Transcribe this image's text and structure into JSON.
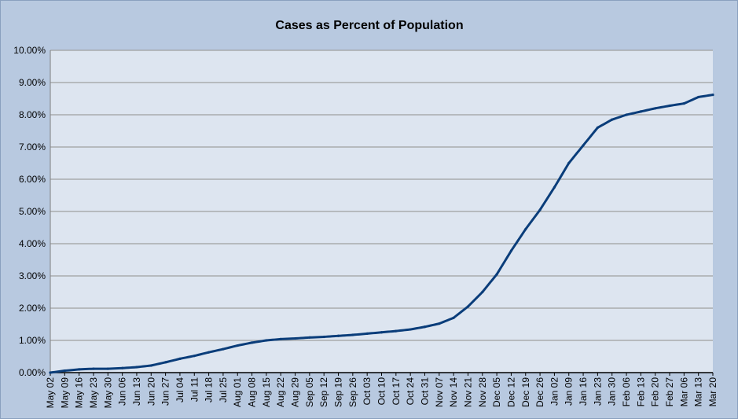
{
  "chart_data": {
    "type": "line",
    "title": "Cases as Percent of Population",
    "xlabel": "",
    "ylabel": "",
    "ylim": [
      0,
      10
    ],
    "y_tick_labels": [
      "0.00%",
      "1.00%",
      "2.00%",
      "3.00%",
      "4.00%",
      "5.00%",
      "6.00%",
      "7.00%",
      "8.00%",
      "9.00%",
      "10.00%"
    ],
    "x_tick_labels": [
      "May 02",
      "May 09",
      "May 16",
      "May 23",
      "May 30",
      "Jun 06",
      "Jun 13",
      "Jun 20",
      "Jun 27",
      "Jul 04",
      "Jul 11",
      "Jul 18",
      "Jul 25",
      "Aug 01",
      "Aug 08",
      "Aug 15",
      "Aug 22",
      "Aug 29",
      "Sep 05",
      "Sep 12",
      "Sep 19",
      "Sep 26",
      "Oct 03",
      "Oct 10",
      "Oct 17",
      "Oct 24",
      "Oct 31",
      "Nov 07",
      "Nov 14",
      "Nov 21",
      "Nov 28",
      "Dec 05",
      "Dec 12",
      "Dec 19",
      "Dec 26",
      "Jan 02",
      "Jan 09",
      "Jan 16",
      "Jan 23",
      "Jan 30",
      "Feb 06",
      "Feb 13",
      "Feb 20",
      "Feb 27",
      "Mar 06",
      "Mar 13",
      "Mar 20"
    ],
    "grid": true,
    "legend": "none",
    "colors": {
      "line": "#0a3d7a",
      "plot_background": "#dde5f0",
      "chart_background": "#b8c9e0",
      "gridline": "#a0a0a0"
    },
    "series": [
      {
        "x": [
          "May 02",
          "May 09",
          "May 16",
          "May 23",
          "May 30",
          "Jun 06",
          "Jun 13",
          "Jun 20",
          "Jun 27",
          "Jul 04",
          "Jul 11",
          "Jul 18",
          "Jul 25",
          "Aug 01",
          "Aug 08",
          "Aug 15",
          "Aug 22",
          "Aug 29",
          "Sep 05",
          "Sep 12",
          "Sep 19",
          "Sep 26",
          "Oct 03",
          "Oct 10",
          "Oct 17",
          "Oct 24",
          "Oct 31",
          "Nov 07",
          "Nov 14",
          "Nov 21",
          "Nov 28",
          "Dec 05",
          "Dec 12",
          "Dec 19",
          "Dec 26",
          "Jan 02",
          "Jan 09",
          "Jan 16",
          "Jan 23",
          "Jan 30",
          "Feb 06",
          "Feb 13",
          "Feb 20",
          "Feb 27",
          "Mar 06",
          "Mar 13",
          "Mar 20"
        ],
        "values": [
          0.0,
          0.06,
          0.1,
          0.12,
          0.12,
          0.14,
          0.17,
          0.22,
          0.32,
          0.43,
          0.52,
          0.63,
          0.73,
          0.84,
          0.93,
          1.0,
          1.04,
          1.06,
          1.09,
          1.11,
          1.14,
          1.17,
          1.21,
          1.25,
          1.29,
          1.34,
          1.42,
          1.52,
          1.7,
          2.05,
          2.5,
          3.05,
          3.78,
          4.45,
          5.05,
          5.75,
          6.5,
          7.05,
          7.6,
          7.85,
          8.0,
          8.1,
          8.2,
          8.28,
          8.35,
          8.55,
          8.62
        ]
      }
    ]
  }
}
